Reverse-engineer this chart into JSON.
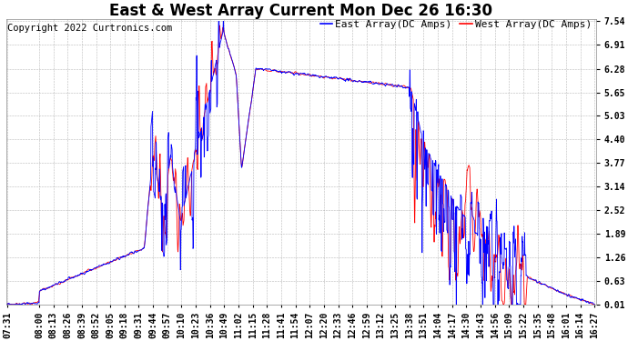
{
  "title": "East & West Array Current Mon Dec 26 16:30",
  "copyright": "Copyright 2022 Curtronics.com",
  "legend_east": "East Array(DC Amps)",
  "legend_west": "West Array(DC Amps)",
  "east_color": "#0000ff",
  "west_color": "#ff0000",
  "background_color": "#ffffff",
  "grid_color": "#b0b0b0",
  "yticks": [
    0.01,
    0.63,
    1.26,
    1.89,
    2.52,
    3.14,
    3.77,
    4.4,
    5.03,
    5.65,
    6.28,
    6.91,
    7.54
  ],
  "ylim": [
    0.01,
    7.54
  ],
  "xtick_labels": [
    "07:31",
    "08:00",
    "08:13",
    "08:26",
    "08:39",
    "08:52",
    "09:05",
    "09:18",
    "09:31",
    "09:44",
    "09:57",
    "10:10",
    "10:23",
    "10:36",
    "10:49",
    "11:02",
    "11:15",
    "11:28",
    "11:41",
    "11:54",
    "12:07",
    "12:20",
    "12:33",
    "12:46",
    "12:59",
    "13:12",
    "13:25",
    "13:38",
    "13:51",
    "14:04",
    "14:17",
    "14:30",
    "14:43",
    "14:56",
    "15:09",
    "15:22",
    "15:35",
    "15:48",
    "16:01",
    "16:14",
    "16:27"
  ],
  "title_fontsize": 12,
  "tick_fontsize": 7,
  "legend_fontsize": 8,
  "copyright_fontsize": 7.5
}
